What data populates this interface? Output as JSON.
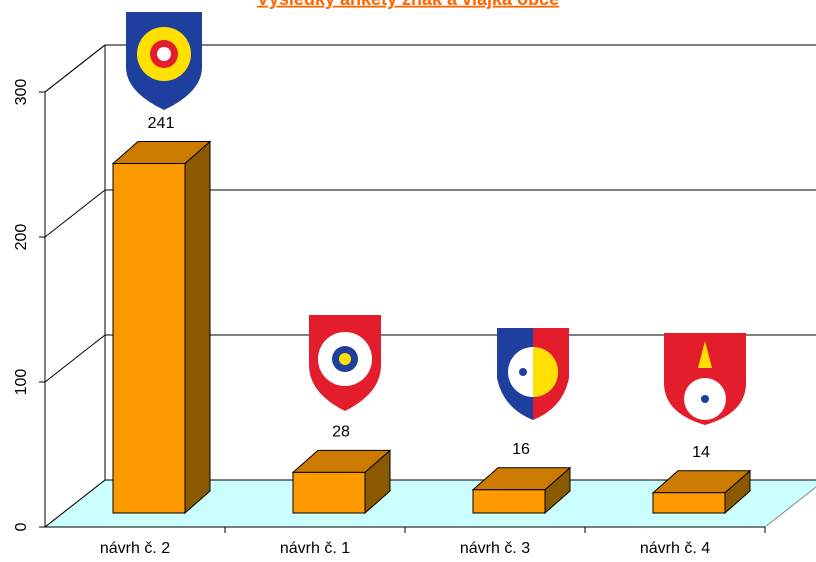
{
  "chart_data": {
    "type": "bar3d",
    "title": "Výsledky ankety znak a vlajka obce",
    "categories": [
      "návrh č. 2",
      "návrh č. 1",
      "návrh č. 3",
      "návrh č. 4"
    ],
    "values": [
      241,
      28,
      16,
      14
    ],
    "color": "#ff9900",
    "ylim": [
      0,
      300
    ],
    "yticks": [
      0,
      100,
      200,
      300
    ],
    "grid": true
  }
}
